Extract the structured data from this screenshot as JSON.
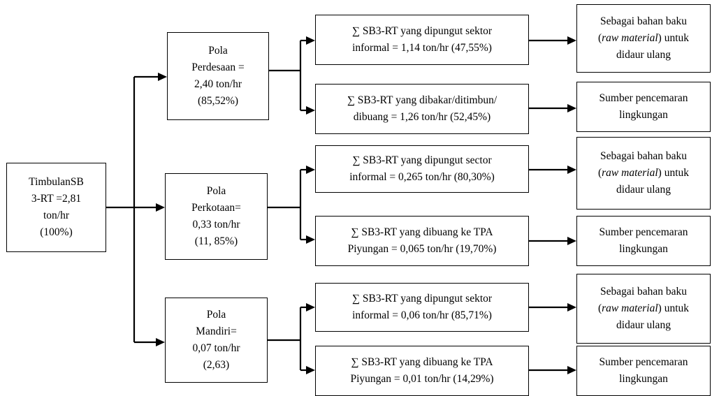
{
  "root": {
    "lines": [
      "TimbulanSB",
      "3-RT =2,81",
      "ton/hr",
      "(100%)"
    ]
  },
  "patterns": [
    {
      "lines": [
        "Pola",
        "Perdesaan =",
        "2,40 ton/hr",
        "(85,52%)"
      ],
      "branches": [
        {
          "lines": [
            "∑ SB3-RT yang dipungut sektor",
            "informal = 1,14 ton/hr (47,55%)"
          ],
          "outcome": {
            "lines": [
              "Sebagai bahan baku",
              "(raw material) untuk",
              "didaur ulang"
            ],
            "italic": "raw material"
          }
        },
        {
          "lines": [
            "∑ SB3-RT yang dibakar/ditimbun/",
            "dibuang = 1,26 ton/hr (52,45%)"
          ],
          "outcome": {
            "lines": [
              "Sumber pencemaran",
              "lingkungan"
            ]
          }
        }
      ]
    },
    {
      "lines": [
        "Pola",
        "Perkotaan=",
        "0,33 ton/hr",
        "(11, 85%)"
      ],
      "branches": [
        {
          "lines": [
            "∑ SB3-RT yang dipungut sector",
            "informal = 0,265 ton/hr  (80,30%)"
          ],
          "outcome": {
            "lines": [
              "Sebagai bahan baku",
              "(raw material) untuk",
              "didaur ulang"
            ],
            "italic": "raw material"
          }
        },
        {
          "lines": [
            "∑ SB3-RT yang dibuang ke TPA",
            "Piyungan = 0,065 ton/hr  (19,70%)"
          ],
          "outcome": {
            "lines": [
              "Sumber pencemaran",
              "lingkungan"
            ]
          }
        }
      ]
    },
    {
      "lines": [
        "Pola",
        "Mandiri=",
        "0,07 ton/hr",
        "(2,63)"
      ],
      "branches": [
        {
          "lines": [
            "∑ SB3-RT yang dipungut sektor",
            "informal = 0,06 ton/hr (85,71%)"
          ],
          "outcome": {
            "lines": [
              "Sebagai bahan baku",
              "(raw material) untuk",
              "didaur ulang"
            ],
            "italic": "raw material"
          }
        },
        {
          "lines": [
            "∑ SB3-RT yang dibuang ke TPA",
            "Piyungan = 0,01 ton/hr  (14,29%)"
          ],
          "outcome": {
            "lines": [
              "Sumber pencemaran",
              "lingkungan"
            ]
          }
        }
      ]
    }
  ]
}
